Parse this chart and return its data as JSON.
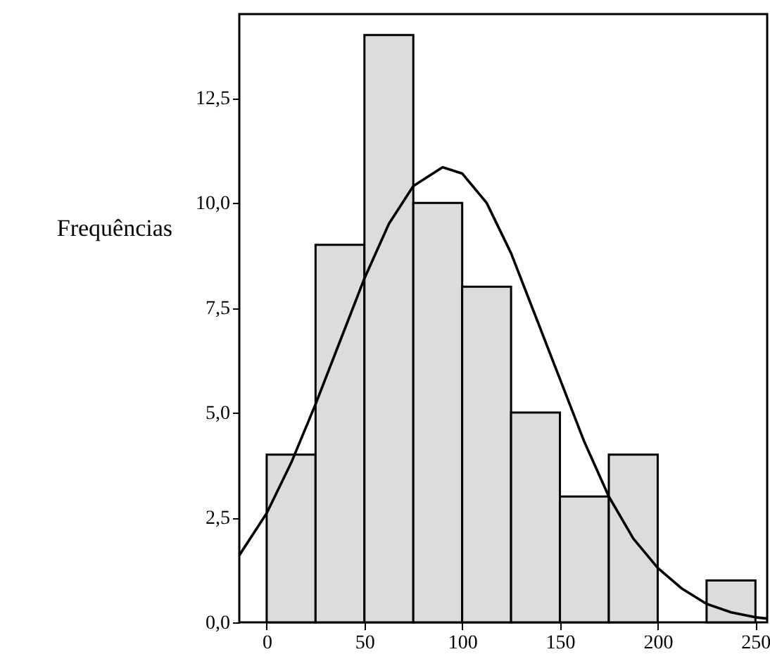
{
  "chart_data": {
    "type": "histogram",
    "ylabel": "Frequências",
    "xlim": [
      -14,
      256
    ],
    "ylim": [
      0,
      14.5
    ],
    "xticks": [
      0,
      50,
      100,
      150,
      200,
      250
    ],
    "yticks": [
      {
        "value": 0,
        "label": "0,0"
      },
      {
        "value": 2.5,
        "label": "2,5"
      },
      {
        "value": 5,
        "label": "5,0"
      },
      {
        "value": 7.5,
        "label": "7,5"
      },
      {
        "value": 10,
        "label": "10,0"
      },
      {
        "value": 12.5,
        "label": "12,5"
      }
    ],
    "grid": false,
    "color": "#dcdcdc",
    "bins": [
      0,
      25,
      50,
      75,
      100,
      125,
      150,
      175,
      200,
      225,
      250
    ],
    "values": [
      4,
      9,
      14,
      10,
      8,
      5,
      3,
      4,
      0,
      1
    ],
    "series": [
      {
        "type": "line",
        "color": "#000000",
        "marker": "none",
        "x": [
          -14,
          0,
          12.5,
          25,
          37.5,
          50,
          62.5,
          75,
          90,
          100,
          112.5,
          125,
          137.5,
          150,
          162.5,
          175,
          187.5,
          200,
          212.5,
          225,
          237.5,
          250,
          256
        ],
        "values": [
          1.6,
          2.6,
          3.8,
          5.2,
          6.7,
          8.2,
          9.5,
          10.4,
          10.85,
          10.7,
          10,
          8.8,
          7.3,
          5.8,
          4.3,
          3.0,
          2.0,
          1.3,
          0.8,
          0.44,
          0.24,
          0.12,
          0.09
        ]
      }
    ]
  }
}
